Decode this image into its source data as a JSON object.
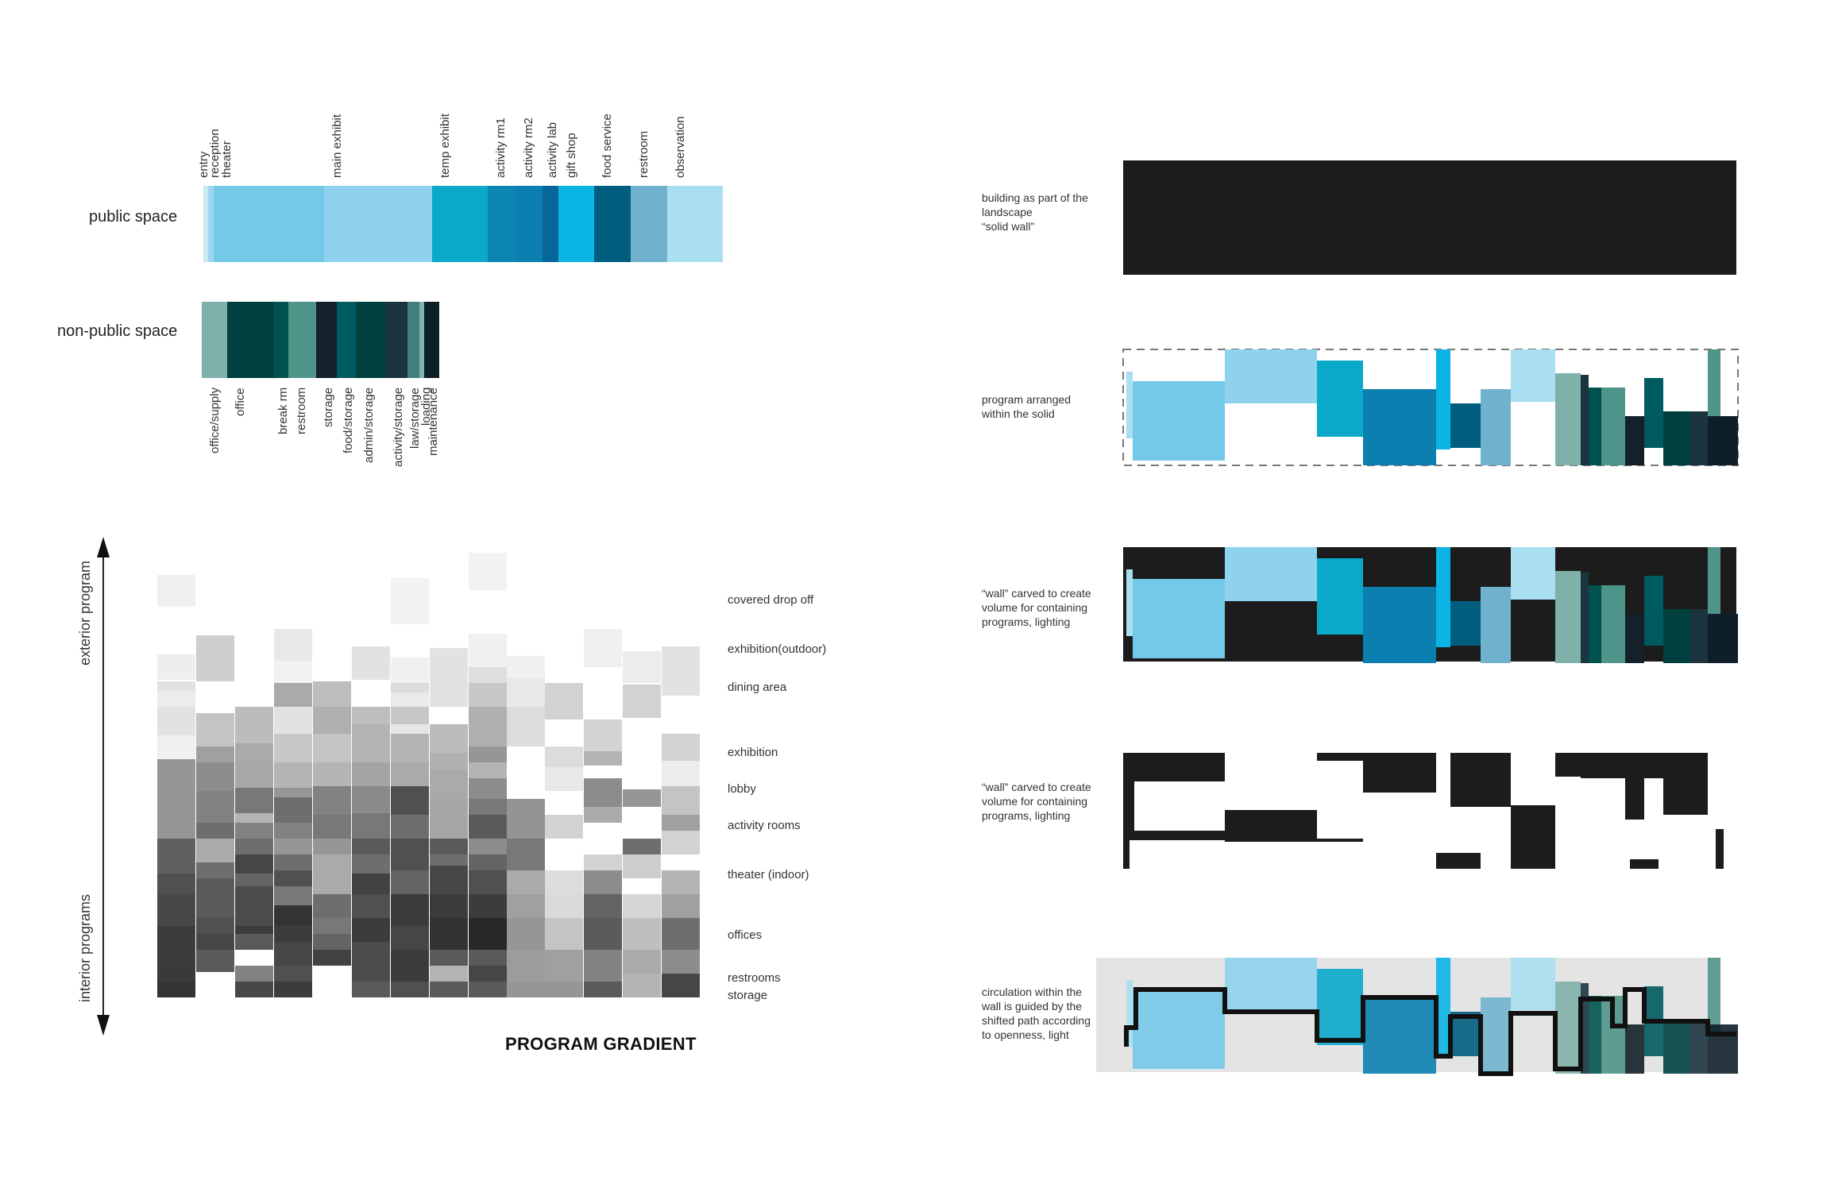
{
  "public_space": {
    "label": "public space",
    "programs": [
      {
        "name": "entry",
        "color": "#c8e8f2",
        "frac": 0.009
      },
      {
        "name": "reception",
        "color": "#9bd6ec",
        "frac": 0.011
      },
      {
        "name": "theater",
        "color": "#74c9e8",
        "frac": 0.212
      },
      {
        "name": "main exhibit",
        "color": "#8fd2ee",
        "frac": 0.209
      },
      {
        "name": "temp exhibit",
        "color": "#0aa9c9",
        "frac": 0.106
      },
      {
        "name": "activity rm1",
        "color": "#0c85b3",
        "frac": 0.054
      },
      {
        "name": "activity rm2",
        "color": "#0a7fb0",
        "frac": 0.052
      },
      {
        "name": "activity lab",
        "color": "#07679a",
        "frac": 0.03
      },
      {
        "name": "gift shop",
        "color": "#0ab4e4",
        "frac": 0.069
      },
      {
        "name": "food service",
        "color": "#005d7d",
        "frac": 0.071
      },
      {
        "name": "restroom",
        "color": "#70b2cd",
        "frac": 0.07
      },
      {
        "name": "observation",
        "color": "#a9dff1",
        "frac": 0.107
      }
    ]
  },
  "non_public_space": {
    "label": "non-public space",
    "programs": [
      {
        "name": "office/supply",
        "color": "#7fb0a9",
        "frac": 0.106
      },
      {
        "name": "office",
        "color": "#00403f",
        "frac": 0.198
      },
      {
        "name": "break rm",
        "color": "#00524f",
        "frac": 0.06
      },
      {
        "name": "restroom",
        "color": "#4f9488",
        "frac": 0.117
      },
      {
        "name": "storage",
        "color": "#14202a",
        "frac": 0.088
      },
      {
        "name": "food/storage",
        "color": "#005b60",
        "frac": 0.08
      },
      {
        "name": "admin/storage",
        "color": "#00413f",
        "frac": 0.122
      },
      {
        "name": "activity/storage",
        "color": "#1c3440",
        "frac": 0.094
      },
      {
        "name": "law/storage",
        "color": "#427e7a",
        "frac": 0.05
      },
      {
        "name": "loading",
        "color": "#7eb5ad",
        "frac": 0.02
      },
      {
        "name": "maintenance",
        "color": "#0f1f2a",
        "frac": 0.065
      }
    ]
  },
  "gradient": {
    "title": "PROGRAM GRADIENT",
    "axis_top": "exterior program",
    "axis_bottom": "interior programs",
    "rows": [
      "covered drop off",
      "exhibition(outdoor)",
      "dining area",
      "exhibition",
      "lobby",
      "activity rooms",
      "theater (indoor)",
      "offices",
      "restrooms",
      "storage"
    ]
  },
  "diagrams": [
    {
      "caption": "building as part of the\nlandscape\n“solid wall”"
    },
    {
      "caption": "program arranged\nwithin the solid"
    },
    {
      "caption": "“wall” carved to create\nvolume for containing\nprograms, lighting"
    },
    {
      "caption": "“wall” carved to create\nvolume for containing\nprograms, lighting"
    },
    {
      "caption": "circulation within the\nwall is guided by the\nshifted path according\nto openness, light"
    }
  ],
  "colors": {
    "solid": "#1c1c1c",
    "circulation_bg": "#e4e4e4",
    "dash": "#777777"
  }
}
